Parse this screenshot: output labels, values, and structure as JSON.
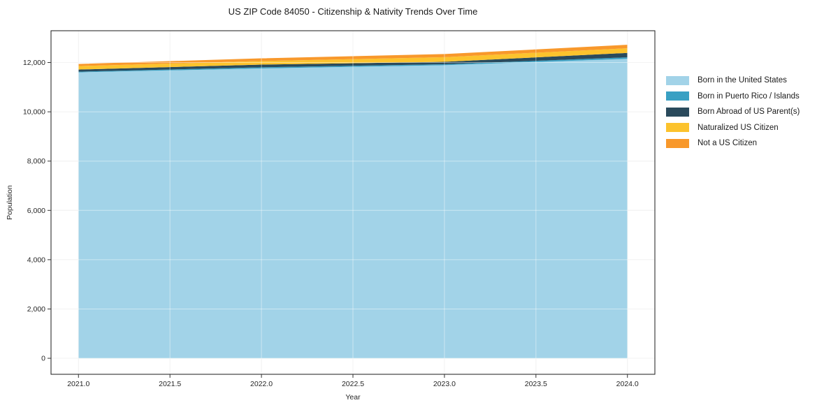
{
  "figure": {
    "title": "US ZIP Code 84050 - Citizenship & Nativity Trends Over Time"
  },
  "chart_data": {
    "type": "area",
    "stacked": true,
    "title": "US ZIP Code 84050 - Citizenship & Nativity Trends Over Time",
    "xlabel": "Year",
    "ylabel": "Population",
    "x": [
      2021,
      2022,
      2023,
      2024
    ],
    "series": [
      {
        "name": "Born in the United States",
        "color": "#a2d3e8",
        "values": [
          11600,
          11760,
          11890,
          12150
        ]
      },
      {
        "name": "Born in Puerto Rico / Islands",
        "color": "#39a0c3",
        "values": [
          30,
          45,
          40,
          60
        ]
      },
      {
        "name": "Born Abroad of US Parent(s)",
        "color": "#2a4a5c",
        "values": [
          85,
          110,
          100,
          180
        ]
      },
      {
        "name": "Naturalized US Citizen",
        "color": "#fcc32d",
        "values": [
          140,
          145,
          185,
          190
        ]
      },
      {
        "name": "Not a US Citizen",
        "color": "#f8982b",
        "values": [
          85,
          110,
          130,
          140
        ]
      }
    ],
    "totals": [
      11940,
      12170,
      12345,
      12720
    ],
    "xlim": [
      2020.85,
      2024.15
    ],
    "ylim": [
      -650,
      13290
    ],
    "xticks": [
      2021.0,
      2021.5,
      2022.0,
      2022.5,
      2023.0,
      2023.5,
      2024.0
    ],
    "xtick_labels": [
      "2021.0",
      "2021.5",
      "2022.0",
      "2022.5",
      "2023.0",
      "2023.5",
      "2024.0"
    ],
    "yticks": [
      0,
      2000,
      4000,
      6000,
      8000,
      10000,
      12000
    ],
    "ytick_labels": [
      "0",
      "2,000",
      "4,000",
      "6,000",
      "8,000",
      "10,000",
      "12,000"
    ],
    "grid": true,
    "legend_position": "right of plot, frameless"
  },
  "colors": {
    "spine": "#1a1a1a",
    "tick": "#333333",
    "grid_below": "#e9e9e9",
    "grid_above": "rgba(255,255,255,0.45)",
    "background": "#ffffff"
  }
}
